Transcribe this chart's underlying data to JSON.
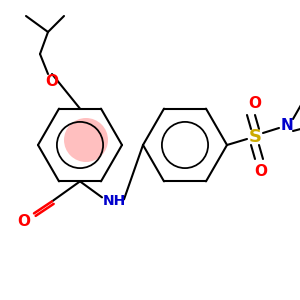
{
  "bg_color": "#ffffff",
  "atom_colors": {
    "O": "#ff0000",
    "N": "#0000cc",
    "S": "#ccaa00",
    "C": "#000000"
  },
  "highlight_color": "#ffaaaa",
  "lw": 1.5
}
